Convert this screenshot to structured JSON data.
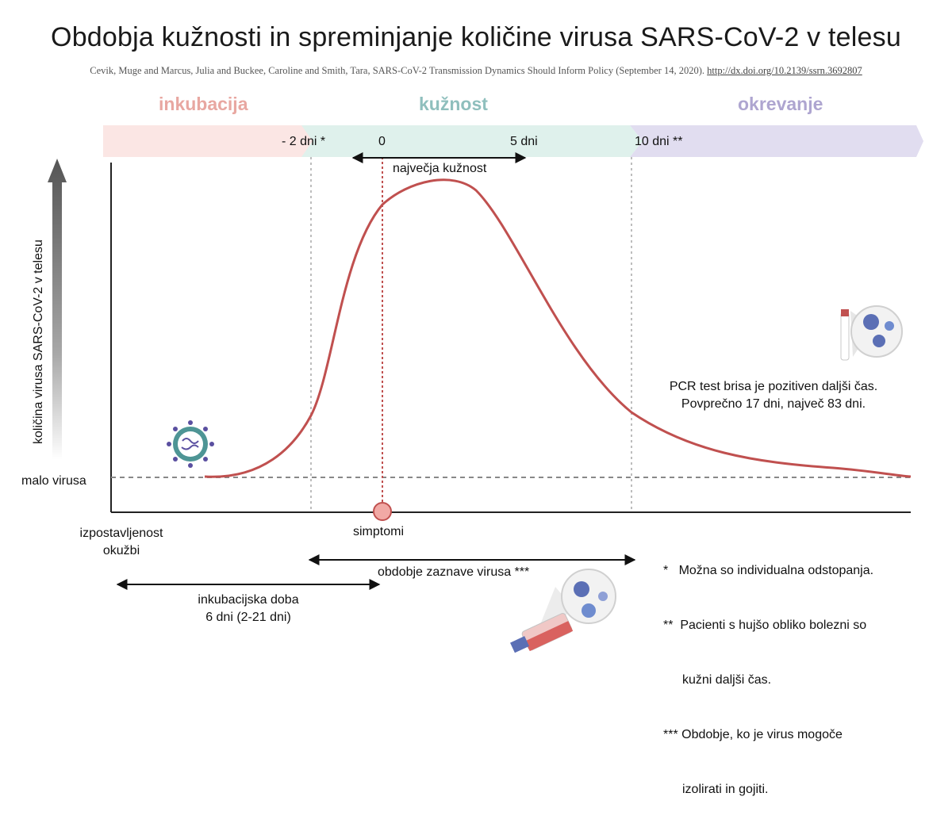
{
  "title": "Obdobja kužnosti in spreminjanje količine virusa SARS-CoV-2 v telesu",
  "citation": {
    "text": "Cevik, Muge and Marcus, Julia and Buckee, Caroline and Smith, Tara, SARS-CoV-2 Transmission Dynamics Should Inform Policy (September 14, 2020).",
    "link": "http://dx.doi.org/10.2139/ssrn.3692807"
  },
  "phases": {
    "incubation": "inkubacija",
    "infectious": "kužnost",
    "recovery": "okrevanje"
  },
  "timeline": {
    "minus2": "- 2 dni *",
    "zero": "0",
    "plus5": "5 dni",
    "plus10": "10 dni **"
  },
  "peak_label": "največja kužnost",
  "y_axis_label": "količina virusa SARS-CoV-2 v telesu",
  "low_virus_label": "malo virusa",
  "exposure_label_line1": "izpostavljenost",
  "exposure_label_line2": "okužbi",
  "symptoms_label": "simptomi",
  "detection_label": "obdobje zaznave virusa ***",
  "incubation_period_line1": "inkubacijska doba",
  "incubation_period_line2": "6 dni (2-21 dni)",
  "pcr_line1": "PCR test brisa je pozitiven daljši čas.",
  "pcr_line2": "Povprečno 17 dni, največ 83 dni.",
  "footnotes": {
    "f1": "*   Možna so individualna odstopanja.",
    "f2a": "**  Pacienti s hujšo obliko bolezni so",
    "f2b": "kužni daljši čas.",
    "f3a": "*** Obdobje, ko je virus mogoče",
    "f3b": "izolirati in gojiti."
  },
  "colors": {
    "curve": "#c0504f",
    "incubation_band": "#fbe6e4",
    "infectious_band": "#dff1ec",
    "recovery_band": "#e1ddf0",
    "incubation_text": "#e8a7a1",
    "infectious_text": "#8fbfbd",
    "recovery_text": "#aea5d0"
  }
}
